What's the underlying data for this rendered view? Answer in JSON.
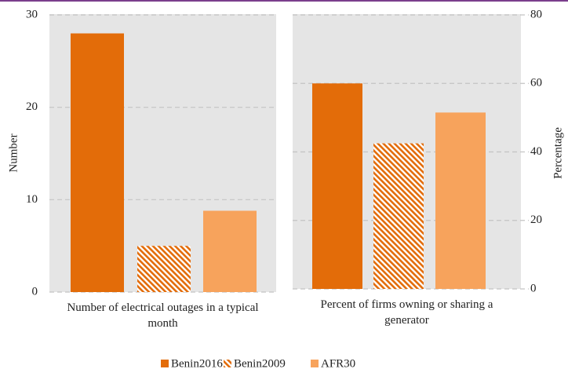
{
  "chart_data": {
    "type": "bar",
    "categories": [
      "Number of electrical outages in a typical month",
      "Percent of firms owning or sharing a generator"
    ],
    "category_axis": [
      "y",
      "y2"
    ],
    "series": [
      {
        "name": "Benin2016",
        "color": "#e36c09",
        "values": [
          28,
          60
        ]
      },
      {
        "name": "Benin2009",
        "color": "#e36c09",
        "hatch": true,
        "values": [
          5,
          42.5
        ]
      },
      {
        "name": "AFR30",
        "color": "#f7a35c",
        "values": [
          8.8,
          51.5
        ]
      }
    ],
    "ylabel": "Number",
    "ylim": [
      0,
      30
    ],
    "yticks": [
      0,
      10,
      20,
      30
    ],
    "y2label": "Percentage",
    "y2lim": [
      0,
      80
    ],
    "y2ticks": [
      0,
      20,
      40,
      60,
      80
    ],
    "grid": true,
    "legend": "bottom"
  }
}
